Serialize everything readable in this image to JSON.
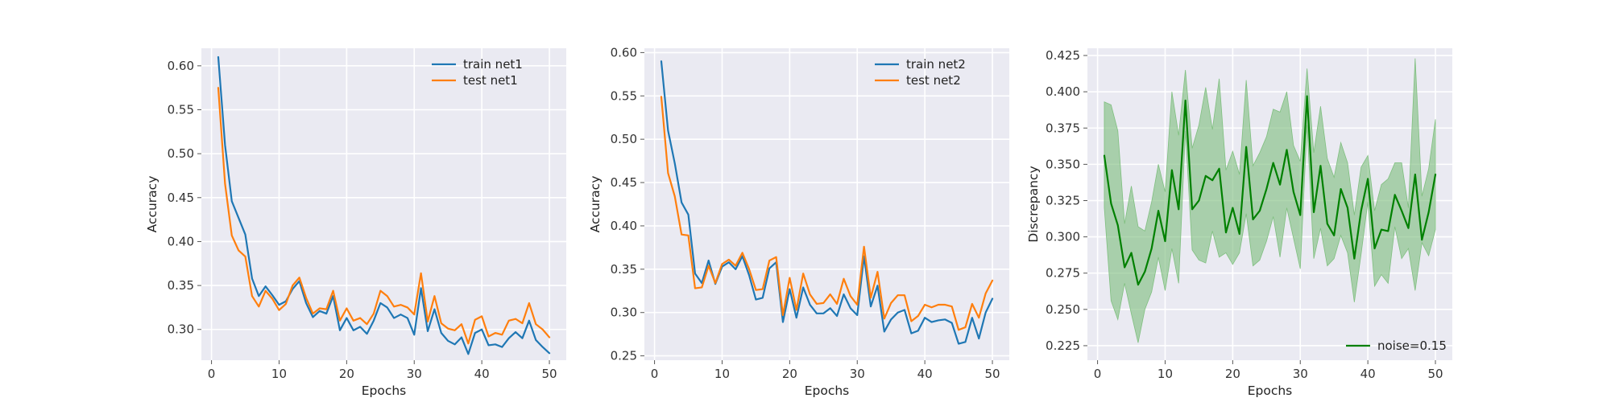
{
  "colors": {
    "axes_bg": "#eaeaf2",
    "grid": "#ffffff",
    "train": "#1f77b4",
    "test": "#ff7f0e",
    "noise": "#008000",
    "noise_band": "#7fbf7f"
  },
  "chart_data": [
    {
      "type": "line",
      "xlabel": "Epochs",
      "ylabel": "Accuracy",
      "xlim": [
        -1.5,
        52.5
      ],
      "ylim": [
        0.265,
        0.62
      ],
      "xticks": [
        0,
        10,
        20,
        30,
        40,
        50
      ],
      "yticks": [
        0.3,
        0.35,
        0.4,
        0.45,
        0.5,
        0.55,
        0.6
      ],
      "ytick_labels": [
        "0.30",
        "0.35",
        "0.40",
        "0.45",
        "0.50",
        "0.55",
        "0.60"
      ],
      "grid": true,
      "legend_position": "top-right",
      "x": [
        1,
        2,
        3,
        4,
        5,
        6,
        7,
        8,
        9,
        10,
        11,
        12,
        13,
        14,
        15,
        16,
        17,
        18,
        19,
        20,
        21,
        22,
        23,
        24,
        25,
        26,
        27,
        28,
        29,
        30,
        31,
        32,
        33,
        34,
        35,
        36,
        37,
        38,
        39,
        40,
        41,
        42,
        43,
        44,
        45,
        46,
        47,
        48,
        49,
        50
      ],
      "series": [
        {
          "name": "train net1",
          "color": "#1f77b4",
          "values": [
            0.61,
            0.51,
            0.446,
            0.427,
            0.408,
            0.358,
            0.338,
            0.349,
            0.339,
            0.328,
            0.332,
            0.346,
            0.355,
            0.33,
            0.314,
            0.321,
            0.318,
            0.338,
            0.299,
            0.313,
            0.299,
            0.303,
            0.295,
            0.31,
            0.33,
            0.325,
            0.313,
            0.317,
            0.313,
            0.294,
            0.347,
            0.298,
            0.323,
            0.296,
            0.287,
            0.283,
            0.291,
            0.272,
            0.296,
            0.3,
            0.282,
            0.283,
            0.28,
            0.29,
            0.297,
            0.29,
            0.31,
            0.288,
            0.28,
            0.273
          ]
        },
        {
          "name": "test net1",
          "color": "#ff7f0e",
          "values": [
            0.575,
            0.466,
            0.407,
            0.39,
            0.383,
            0.338,
            0.326,
            0.344,
            0.335,
            0.322,
            0.329,
            0.35,
            0.359,
            0.336,
            0.318,
            0.324,
            0.323,
            0.344,
            0.31,
            0.324,
            0.31,
            0.313,
            0.306,
            0.318,
            0.344,
            0.338,
            0.326,
            0.328,
            0.325,
            0.317,
            0.364,
            0.309,
            0.338,
            0.307,
            0.301,
            0.299,
            0.306,
            0.284,
            0.311,
            0.315,
            0.292,
            0.296,
            0.294,
            0.31,
            0.312,
            0.307,
            0.33,
            0.306,
            0.3,
            0.291
          ]
        }
      ]
    },
    {
      "type": "line",
      "xlabel": "Epochs",
      "ylabel": "Accuracy",
      "xlim": [
        -1.5,
        52.5
      ],
      "ylim": [
        0.245,
        0.605
      ],
      "xticks": [
        0,
        10,
        20,
        30,
        40,
        50
      ],
      "yticks": [
        0.25,
        0.3,
        0.35,
        0.4,
        0.45,
        0.5,
        0.55,
        0.6
      ],
      "ytick_labels": [
        "0.25",
        "0.30",
        "0.35",
        "0.40",
        "0.45",
        "0.50",
        "0.55",
        "0.60"
      ],
      "grid": true,
      "legend_position": "top-right",
      "x": [
        1,
        2,
        3,
        4,
        5,
        6,
        7,
        8,
        9,
        10,
        11,
        12,
        13,
        14,
        15,
        16,
        17,
        18,
        19,
        20,
        21,
        22,
        23,
        24,
        25,
        26,
        27,
        28,
        29,
        30,
        31,
        32,
        33,
        34,
        35,
        36,
        37,
        38,
        39,
        40,
        41,
        42,
        43,
        44,
        45,
        46,
        47,
        48,
        49,
        50
      ],
      "series": [
        {
          "name": "train net2",
          "color": "#1f77b4",
          "values": [
            0.59,
            0.51,
            0.472,
            0.427,
            0.413,
            0.345,
            0.334,
            0.36,
            0.333,
            0.353,
            0.358,
            0.35,
            0.365,
            0.343,
            0.315,
            0.317,
            0.351,
            0.358,
            0.289,
            0.327,
            0.294,
            0.329,
            0.309,
            0.299,
            0.299,
            0.305,
            0.296,
            0.321,
            0.305,
            0.297,
            0.365,
            0.307,
            0.331,
            0.278,
            0.292,
            0.3,
            0.303,
            0.276,
            0.279,
            0.294,
            0.289,
            0.291,
            0.292,
            0.288,
            0.264,
            0.266,
            0.294,
            0.27,
            0.3,
            0.316
          ]
        },
        {
          "name": "test net2",
          "color": "#ff7f0e",
          "values": [
            0.549,
            0.461,
            0.434,
            0.39,
            0.389,
            0.328,
            0.329,
            0.354,
            0.334,
            0.356,
            0.361,
            0.354,
            0.369,
            0.35,
            0.326,
            0.327,
            0.36,
            0.364,
            0.297,
            0.34,
            0.303,
            0.345,
            0.321,
            0.31,
            0.311,
            0.321,
            0.31,
            0.339,
            0.319,
            0.309,
            0.376,
            0.317,
            0.347,
            0.293,
            0.311,
            0.32,
            0.32,
            0.29,
            0.296,
            0.309,
            0.306,
            0.309,
            0.309,
            0.307,
            0.28,
            0.283,
            0.31,
            0.294,
            0.322,
            0.337
          ]
        }
      ]
    },
    {
      "type": "line",
      "xlabel": "Epochs",
      "ylabel": "Discrepancy",
      "xlim": [
        -1.5,
        52.5
      ],
      "ylim": [
        0.215,
        0.43
      ],
      "xticks": [
        0,
        10,
        20,
        30,
        40,
        50
      ],
      "yticks": [
        0.225,
        0.25,
        0.275,
        0.3,
        0.325,
        0.35,
        0.375,
        0.4,
        0.425
      ],
      "ytick_labels": [
        "0.225",
        "0.250",
        "0.275",
        "0.300",
        "0.325",
        "0.350",
        "0.375",
        "0.400",
        "0.425"
      ],
      "grid": true,
      "legend_position": "lower-right",
      "x": [
        1,
        2,
        3,
        4,
        5,
        6,
        7,
        8,
        9,
        10,
        11,
        12,
        13,
        14,
        15,
        16,
        17,
        18,
        19,
        20,
        21,
        22,
        23,
        24,
        25,
        26,
        27,
        28,
        29,
        30,
        31,
        32,
        33,
        34,
        35,
        36,
        37,
        38,
        39,
        40,
        41,
        42,
        43,
        44,
        45,
        46,
        47,
        48,
        49,
        50
      ],
      "series": [
        {
          "name": "noise=0.15",
          "color": "#008000",
          "values": [
            0.356,
            0.323,
            0.308,
            0.279,
            0.289,
            0.267,
            0.276,
            0.292,
            0.318,
            0.297,
            0.346,
            0.319,
            0.394,
            0.319,
            0.325,
            0.342,
            0.339,
            0.347,
            0.303,
            0.32,
            0.302,
            0.362,
            0.312,
            0.318,
            0.333,
            0.351,
            0.336,
            0.36,
            0.331,
            0.315,
            0.397,
            0.317,
            0.349,
            0.309,
            0.301,
            0.333,
            0.32,
            0.285,
            0.318,
            0.34,
            0.292,
            0.305,
            0.304,
            0.329,
            0.318,
            0.306,
            0.343,
            0.298,
            0.317,
            0.343
          ],
          "band_upper": [
            0.393,
            0.391,
            0.373,
            0.309,
            0.335,
            0.307,
            0.304,
            0.324,
            0.35,
            0.331,
            0.4,
            0.37,
            0.415,
            0.361,
            0.377,
            0.403,
            0.374,
            0.409,
            0.346,
            0.359,
            0.343,
            0.408,
            0.349,
            0.358,
            0.369,
            0.388,
            0.386,
            0.4,
            0.363,
            0.352,
            0.416,
            0.358,
            0.39,
            0.354,
            0.341,
            0.365,
            0.351,
            0.315,
            0.348,
            0.356,
            0.318,
            0.336,
            0.34,
            0.351,
            0.351,
            0.32,
            0.423,
            0.328,
            0.347,
            0.381
          ],
          "band_lower": [
            0.32,
            0.256,
            0.243,
            0.268,
            0.247,
            0.227,
            0.25,
            0.262,
            0.286,
            0.263,
            0.292,
            0.268,
            0.373,
            0.291,
            0.284,
            0.282,
            0.304,
            0.286,
            0.289,
            0.281,
            0.289,
            0.316,
            0.28,
            0.284,
            0.297,
            0.314,
            0.286,
            0.32,
            0.299,
            0.278,
            0.377,
            0.285,
            0.306,
            0.28,
            0.285,
            0.301,
            0.289,
            0.255,
            0.288,
            0.324,
            0.266,
            0.274,
            0.268,
            0.307,
            0.285,
            0.292,
            0.263,
            0.296,
            0.287,
            0.305
          ]
        }
      ]
    }
  ]
}
